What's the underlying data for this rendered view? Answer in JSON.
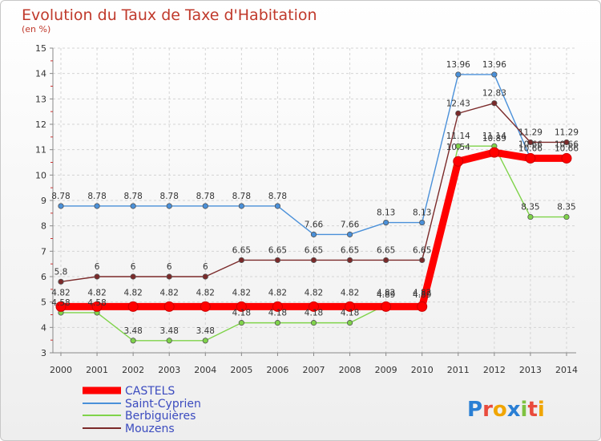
{
  "chart_data": {
    "type": "line",
    "title": "Evolution du Taux de Taxe d'Habitation",
    "subtitle": "(en %)",
    "x": [
      "2000",
      "2001",
      "2002",
      "2003",
      "2004",
      "2005",
      "2006",
      "2007",
      "2008",
      "2009",
      "2010",
      "2011",
      "2012",
      "2013",
      "2014"
    ],
    "ylim": [
      3,
      15
    ],
    "yticks": [
      "3",
      "4",
      "5",
      "6",
      "7",
      "8",
      "9",
      "10",
      "11",
      "12",
      "13",
      "14",
      "15"
    ],
    "grid": true,
    "legend_position": "bottom-left",
    "series": [
      {
        "name": "CASTELS",
        "color": "#ff0000",
        "values": [
          4.82,
          4.82,
          4.82,
          4.82,
          4.82,
          4.82,
          4.82,
          4.82,
          4.82,
          4.82,
          4.82,
          10.54,
          10.89,
          10.66,
          10.66
        ],
        "labels": [
          "4.82",
          "4.82",
          "4.82",
          "4.82",
          "4.82",
          "4.82",
          "4.82",
          "4.82",
          "4.82",
          "4.82",
          "4.82",
          "10.54",
          "10.89",
          "10.66",
          "10.66"
        ]
      },
      {
        "name": "Saint-Cyprien",
        "color": "#4a90d9",
        "values": [
          8.78,
          8.78,
          8.78,
          8.78,
          8.78,
          8.78,
          8.78,
          7.66,
          7.66,
          8.13,
          8.13,
          13.96,
          13.96,
          10.66,
          10.66
        ],
        "labels": [
          "8.78",
          "8.78",
          "8.78",
          "8.78",
          "8.78",
          "8.78",
          "8.78",
          "7.66",
          "7.66",
          "8.13",
          "8.13",
          "13.96",
          "13.96",
          "10.66",
          "10.66"
        ]
      },
      {
        "name": "Berbiguières",
        "color": "#7fd34a",
        "values": [
          4.58,
          4.58,
          3.48,
          3.48,
          3.48,
          4.18,
          4.18,
          4.18,
          4.18,
          4.89,
          4.89,
          11.14,
          11.14,
          8.35,
          8.35
        ],
        "labels": [
          "4.58",
          "4.58",
          "3.48",
          "3.48",
          "3.48",
          "4.18",
          "4.18",
          "4.18",
          "4.18",
          "4.89",
          "4.89",
          "11.14",
          "11.14",
          "8.35",
          "8.35"
        ]
      },
      {
        "name": "Mouzens",
        "color": "#7b2a2a",
        "values": [
          5.8,
          6,
          6,
          6,
          6,
          6.65,
          6.65,
          6.65,
          6.65,
          6.65,
          6.65,
          12.43,
          12.83,
          11.29,
          11.29
        ],
        "labels": [
          "5.8",
          "6",
          "6",
          "6",
          "6",
          "6.65",
          "6.65",
          "6.65",
          "6.65",
          "6.65",
          "6.65",
          "12.43",
          "12.83",
          "11.29",
          "11.29"
        ]
      }
    ]
  },
  "branding": {
    "logo": "Proxiti"
  }
}
